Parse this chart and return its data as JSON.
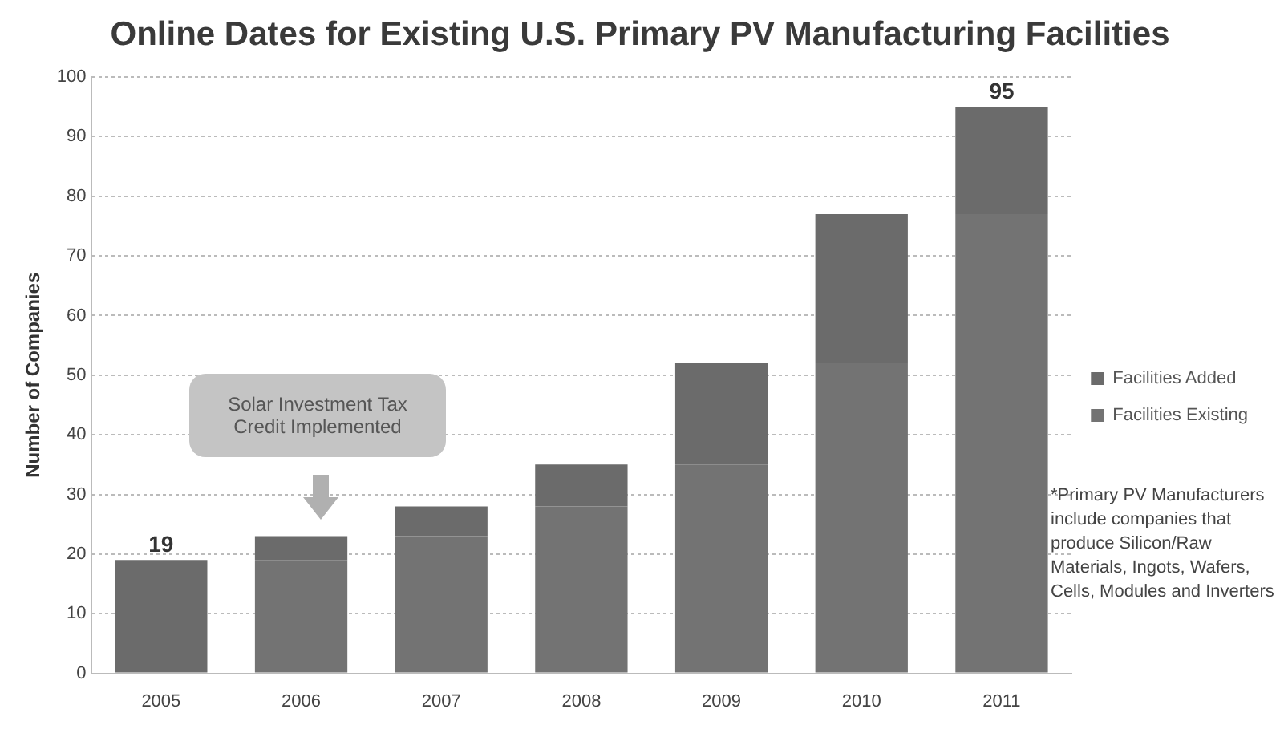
{
  "chart_data": {
    "type": "bar",
    "title": "Online Dates for Existing U.S. Primary PV Manufacturing Facilities",
    "ylabel": "Number of Companies",
    "categories": [
      "2005",
      "2006",
      "2007",
      "2008",
      "2009",
      "2010",
      "2011"
    ],
    "stacked": true,
    "series": [
      {
        "name": "Facilities Existing",
        "color": "#737373",
        "values": [
          0,
          19,
          23,
          28,
          35,
          52,
          77
        ]
      },
      {
        "name": "Facilities Added",
        "color": "#6b6b6b",
        "values": [
          19,
          4,
          5,
          7,
          17,
          25,
          18
        ]
      }
    ],
    "totals": [
      "19",
      null,
      null,
      null,
      null,
      null,
      "95"
    ],
    "ylim": [
      0,
      100
    ],
    "yticks": [
      0,
      10,
      20,
      30,
      40,
      50,
      60,
      70,
      80,
      90,
      100
    ],
    "grid": "y",
    "legend": "right",
    "annotations": [
      "Solar Investment Tax Credit Implemented",
      "*Primary PV Manufacturers include companies that produce Silicon/Raw Materials, Ingots, Wafers, Cells, Modules and Inverters"
    ]
  }
}
